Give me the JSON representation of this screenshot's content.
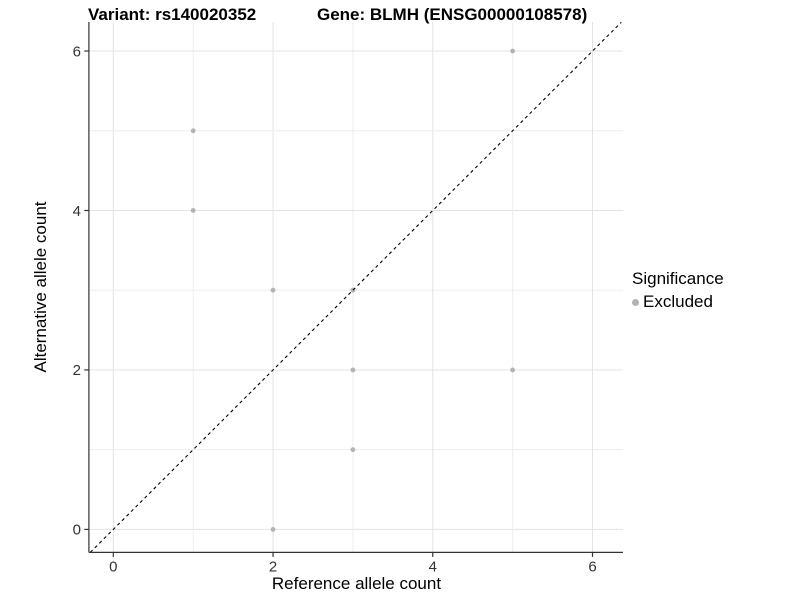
{
  "figure": {
    "titles": {
      "left": "Variant: rs140020352",
      "right": "Gene: BLMH (ENSG00000108578)"
    },
    "legend": {
      "title": "Significance",
      "items": [
        {
          "label": "Excluded",
          "color": "#b3b3b3"
        }
      ]
    }
  },
  "chart_data": {
    "type": "scatter",
    "title": "Variant: rs140020352 — Gene: BLMH (ENSG00000108578)",
    "xlabel": "Reference allele count",
    "ylabel": "Alternative allele count",
    "xlim": [
      -0.3,
      6.37
    ],
    "ylim": [
      -0.3,
      6.37
    ],
    "x_ticks": [
      0,
      2,
      4,
      6
    ],
    "y_ticks": [
      0,
      2,
      4,
      6
    ],
    "minor_gridlines": [
      1,
      3,
      5
    ],
    "major_gridlines": [
      0,
      2,
      4,
      6
    ],
    "grid": true,
    "legend_position": "right",
    "series": [
      {
        "name": "Excluded",
        "color": "#b3b3b3",
        "points": [
          [
            1,
            5
          ],
          [
            1,
            4
          ],
          [
            2,
            3
          ],
          [
            2,
            0
          ],
          [
            3,
            3
          ],
          [
            3,
            2
          ],
          [
            3,
            1
          ],
          [
            5,
            6
          ],
          [
            5,
            2
          ]
        ]
      }
    ],
    "reference_line": {
      "type": "identity y=x",
      "style": "dashed",
      "color": "#000000"
    }
  },
  "colors": {
    "background": "#ffffff",
    "grid_major": "#e3e3e3",
    "grid_minor": "#eeeeee",
    "axis": "#333333",
    "tick_label": "#333333",
    "point": "#b3b3b3"
  }
}
